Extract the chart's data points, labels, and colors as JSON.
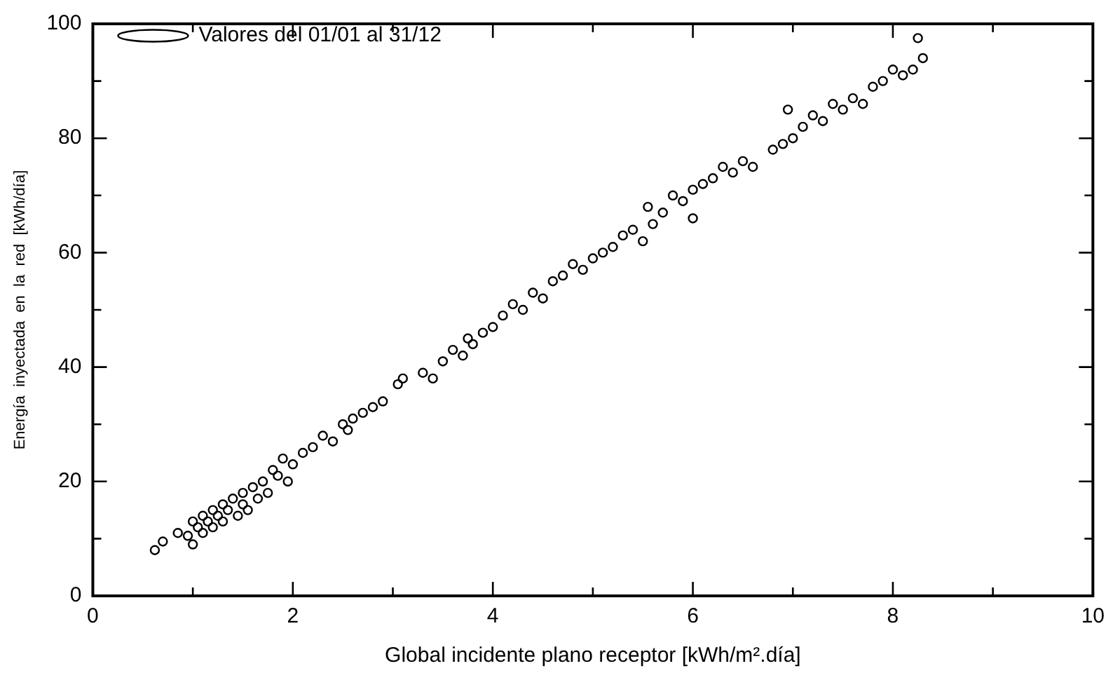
{
  "chart_data": {
    "type": "scatter",
    "xlabel": "Global incidente plano receptor [kWh/m².día]",
    "ylabel": "Energía  inyectada  en  la  red  [kWh/día]",
    "xlim": [
      0,
      10
    ],
    "xticks": [
      0,
      {
        "value": 1,
        "label": null
      },
      2,
      {
        "value": 3,
        "label": null
      },
      4,
      {
        "value": 5,
        "label": null
      },
      6,
      {
        "value": 7,
        "label": null
      },
      8,
      {
        "value": 9,
        "label": null
      },
      10
    ],
    "ylim": [
      0,
      100
    ],
    "yticks": [
      0,
      {
        "value": 10,
        "label": null
      },
      20,
      {
        "value": 30,
        "label": null
      },
      40,
      {
        "value": 50,
        "label": null
      },
      60,
      {
        "value": 70,
        "label": null
      },
      80,
      {
        "value": 90,
        "label": null
      },
      100
    ],
    "grid": false,
    "legend": "top left",
    "marker": "circle",
    "series": [
      {
        "name": "Valores del 01/01 al 31/12",
        "color": "#000000",
        "x": [
          0.62,
          0.7,
          0.85,
          0.95,
          1.0,
          1.0,
          1.05,
          1.1,
          1.1,
          1.15,
          1.2,
          1.2,
          1.25,
          1.3,
          1.3,
          1.35,
          1.4,
          1.45,
          1.5,
          1.5,
          1.55,
          1.6,
          1.65,
          1.7,
          1.75,
          1.8,
          1.85,
          1.9,
          1.95,
          2.0,
          2.1,
          2.2,
          2.3,
          2.4,
          2.5,
          2.55,
          2.6,
          2.7,
          2.8,
          2.9,
          3.05,
          3.1,
          3.3,
          3.4,
          3.5,
          3.6,
          3.7,
          3.75,
          3.8,
          3.9,
          4.0,
          4.1,
          4.2,
          4.3,
          4.4,
          4.5,
          4.6,
          4.7,
          4.8,
          4.9,
          5.0,
          5.1,
          5.2,
          5.3,
          5.4,
          5.5,
          5.55,
          5.6,
          5.7,
          5.8,
          5.9,
          6.0,
          6.0,
          6.1,
          6.2,
          6.3,
          6.4,
          6.5,
          6.6,
          6.8,
          6.9,
          6.95,
          7.0,
          7.1,
          7.2,
          7.3,
          7.4,
          7.5,
          7.6,
          7.7,
          7.8,
          7.9,
          8.0,
          8.1,
          8.2,
          8.25,
          8.3
        ],
        "values": [
          8,
          9.5,
          11,
          10.5,
          9,
          13,
          12,
          11,
          14,
          13,
          12,
          15,
          14,
          13,
          16,
          15,
          17,
          14,
          18,
          16,
          15,
          19,
          17,
          20,
          18,
          22,
          21,
          24,
          20,
          23,
          25,
          26,
          28,
          27,
          30,
          29,
          31,
          32,
          33,
          34,
          37,
          38,
          39,
          38,
          41,
          43,
          42,
          45,
          44,
          46,
          47,
          49,
          51,
          50,
          53,
          52,
          55,
          56,
          58,
          57,
          59,
          60,
          61,
          63,
          64,
          62,
          68,
          65,
          67,
          70,
          69,
          71,
          66,
          72,
          73,
          75,
          74,
          76,
          75,
          78,
          79,
          85,
          80,
          82,
          84,
          83,
          86,
          85,
          87,
          86,
          89,
          90,
          92,
          91,
          92,
          97.5,
          94
        ]
      }
    ]
  }
}
